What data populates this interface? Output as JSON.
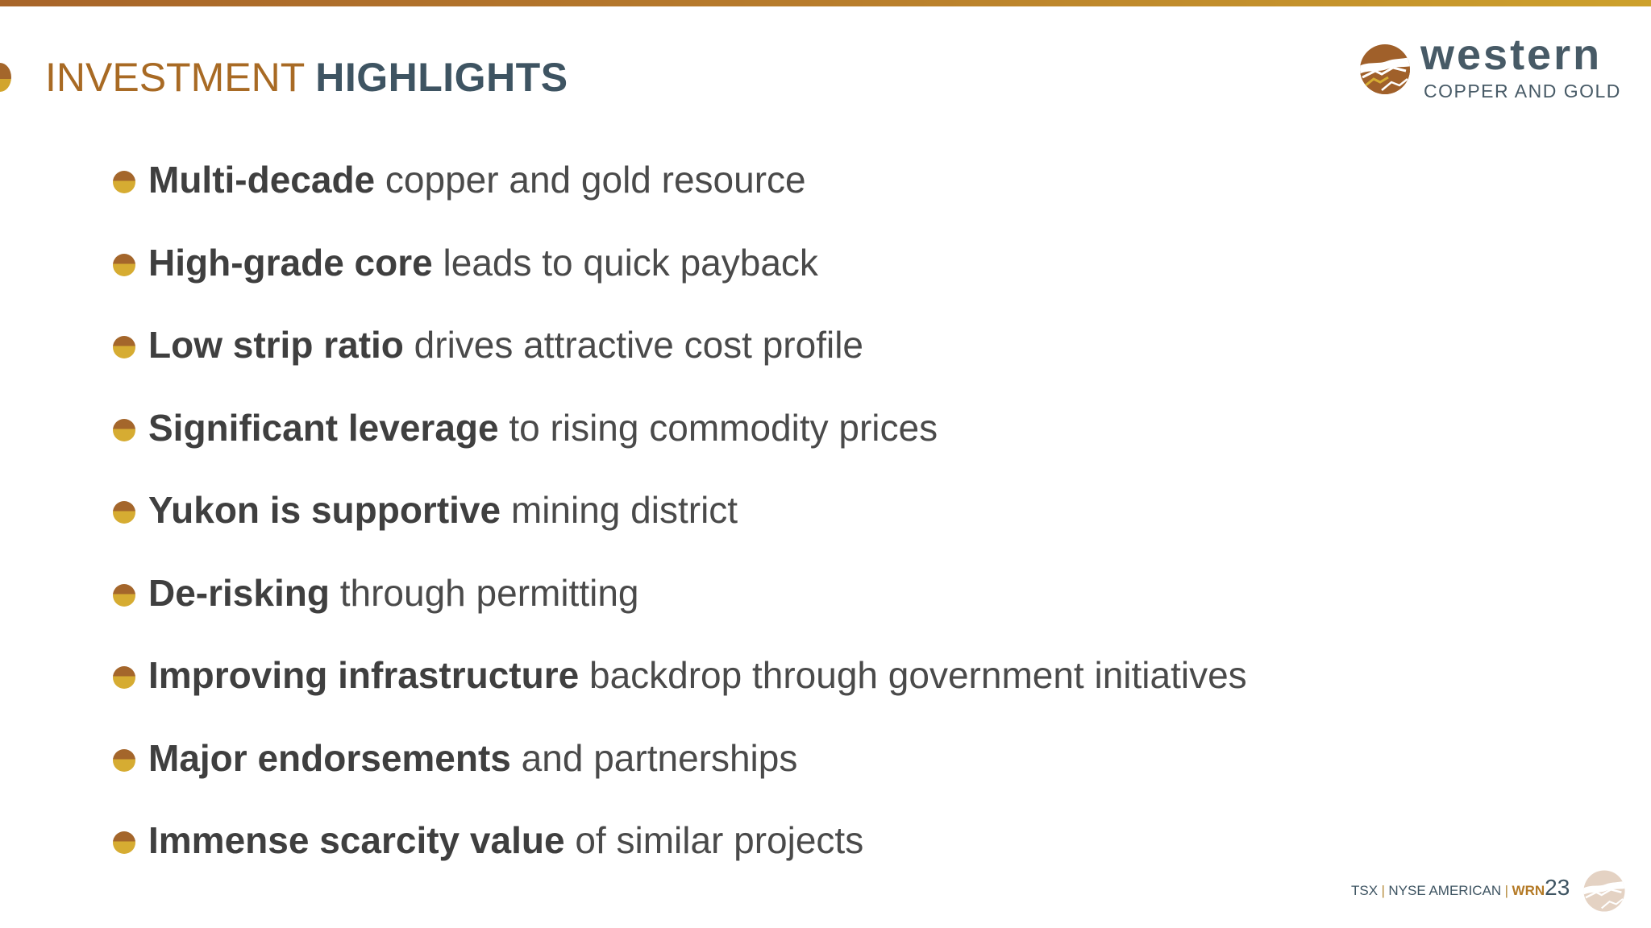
{
  "title": {
    "part1": "INVESTMENT",
    "part2": "HIGHLIGHTS"
  },
  "logo": {
    "word": "western",
    "sub": "COPPER AND GOLD"
  },
  "bullets": [
    {
      "bold": "Multi-decade",
      "rest": " copper and gold resource"
    },
    {
      "bold": "High-grade core",
      "rest": " leads to quick payback"
    },
    {
      "bold": "Low strip ratio",
      "rest": " drives attractive cost profile"
    },
    {
      "bold": "Significant leverage",
      "rest": " to rising commodity prices"
    },
    {
      "bold": "Yukon is supportive",
      "rest": " mining district"
    },
    {
      "bold": "De-risking",
      "rest": " through permitting"
    },
    {
      "bold": "Improving infrastructure",
      "rest": " backdrop through government initiatives"
    },
    {
      "bold": "Major endorsements",
      "rest": " and partnerships"
    },
    {
      "bold": "Immense scarcity value",
      "rest": " of similar projects"
    }
  ],
  "footer": {
    "exchange1": "TSX",
    "separator": "|",
    "exchange2": "NYSE AMERICAN",
    "ticker": "WRN",
    "page_number": "23"
  },
  "colors": {
    "accent_brown": "#a86a24",
    "accent_gold": "#d6ac32",
    "slate": "#3e5462"
  },
  "icons": {
    "logo_mark": "western-logo-icon",
    "bullet": "bullet-disc-icon"
  }
}
